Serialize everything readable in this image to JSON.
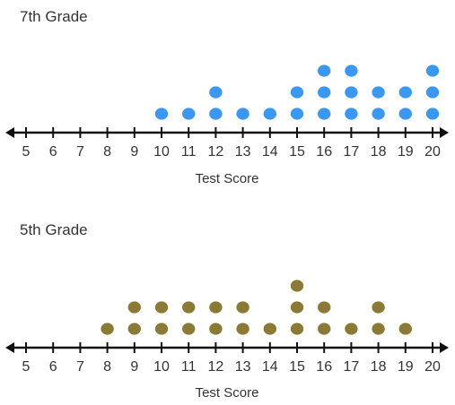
{
  "chart_data": [
    {
      "type": "scatter",
      "subtype": "dot-plot",
      "title": "7th Grade",
      "xlabel": "Test Score",
      "ylabel": "",
      "xlim": [
        5,
        20
      ],
      "ticks": [
        5,
        6,
        7,
        8,
        9,
        10,
        11,
        12,
        13,
        14,
        15,
        16,
        17,
        18,
        19,
        20
      ],
      "dot_color": "#3b97f0",
      "x": [
        10,
        11,
        12,
        13,
        14,
        15,
        16,
        17,
        18,
        19,
        20
      ],
      "counts": [
        1,
        1,
        2,
        1,
        1,
        2,
        3,
        3,
        2,
        2,
        3
      ]
    },
    {
      "type": "scatter",
      "subtype": "dot-plot",
      "title": "5th Grade",
      "xlabel": "Test Score",
      "ylabel": "",
      "xlim": [
        5,
        20
      ],
      "ticks": [
        5,
        6,
        7,
        8,
        9,
        10,
        11,
        12,
        13,
        14,
        15,
        16,
        17,
        18,
        19,
        20
      ],
      "dot_color": "#8a7a36",
      "x": [
        8,
        9,
        10,
        11,
        12,
        13,
        14,
        15,
        16,
        17,
        18,
        19
      ],
      "counts": [
        1,
        2,
        2,
        2,
        2,
        2,
        1,
        3,
        2,
        1,
        2,
        1
      ]
    }
  ]
}
